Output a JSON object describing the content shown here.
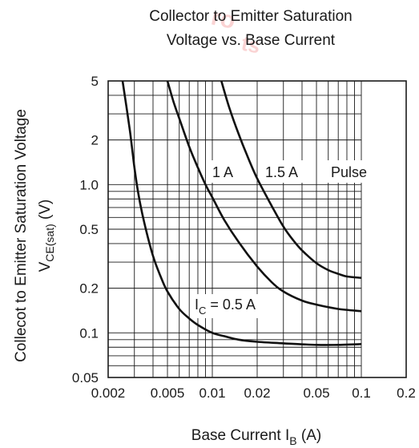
{
  "chart_data": {
    "type": "line",
    "title_line1": "Collector to Emitter Saturation",
    "title_line2": "Voltage vs. Base Current",
    "xlabel_main": "Base Current  I",
    "xlabel_sub": "B",
    "xlabel_unit": " (A)",
    "ylabel_line1": "Collecot to Emitter Saturation Voltage",
    "ylabel_line2_main": "V",
    "ylabel_line2_sub": "CE(sat)",
    "ylabel_line2_unit": " (V)",
    "x_scale": "log",
    "y_scale": "log",
    "xlim": [
      0.002,
      0.2
    ],
    "ylim": [
      0.05,
      5
    ],
    "x_ticks": [
      {
        "v": 0.002,
        "label": "0.002"
      },
      {
        "v": 0.005,
        "label": "0.005"
      },
      {
        "v": 0.01,
        "label": "0.01"
      },
      {
        "v": 0.02,
        "label": "0.02"
      },
      {
        "v": 0.05,
        "label": "0.05"
      },
      {
        "v": 0.1,
        "label": "0.1"
      },
      {
        "v": 0.2,
        "label": "0.2"
      }
    ],
    "y_ticks": [
      {
        "v": 0.05,
        "label": "0.05"
      },
      {
        "v": 0.1,
        "label": "0.1"
      },
      {
        "v": 0.2,
        "label": "0.2"
      },
      {
        "v": 0.5,
        "label": "0.5"
      },
      {
        "v": 1.0,
        "label": "1.0"
      },
      {
        "v": 2,
        "label": "2"
      },
      {
        "v": 5,
        "label": "5"
      }
    ],
    "grid": true,
    "grid_right_limit": 0.1,
    "series": [
      {
        "name": "I_C = 0.5 A",
        "x": [
          0.0025,
          0.0028,
          0.003,
          0.0032,
          0.0035,
          0.004,
          0.0045,
          0.005,
          0.006,
          0.007,
          0.008,
          0.01,
          0.012,
          0.015,
          0.02,
          0.03,
          0.05,
          0.07,
          0.1
        ],
        "y": [
          5,
          2.3,
          1.3,
          0.85,
          0.55,
          0.33,
          0.24,
          0.19,
          0.145,
          0.125,
          0.113,
          0.1,
          0.095,
          0.09,
          0.087,
          0.085,
          0.083,
          0.083,
          0.084
        ]
      },
      {
        "name": "1 A",
        "x": [
          0.005,
          0.0055,
          0.006,
          0.007,
          0.008,
          0.009,
          0.01,
          0.012,
          0.015,
          0.02,
          0.025,
          0.03,
          0.04,
          0.05,
          0.07,
          0.1
        ],
        "y": [
          5,
          3.6,
          2.8,
          1.8,
          1.3,
          1.0,
          0.82,
          0.58,
          0.41,
          0.28,
          0.22,
          0.19,
          0.165,
          0.155,
          0.145,
          0.14
        ]
      },
      {
        "name": "1.5 A",
        "x": [
          0.0115,
          0.013,
          0.015,
          0.017,
          0.02,
          0.025,
          0.03,
          0.035,
          0.04,
          0.05,
          0.06,
          0.07,
          0.08,
          0.1
        ],
        "y": [
          5,
          3.3,
          2.2,
          1.6,
          1.1,
          0.72,
          0.52,
          0.42,
          0.36,
          0.295,
          0.265,
          0.25,
          0.24,
          0.235
        ]
      }
    ],
    "annotations": {
      "label_1A": "1 A",
      "label_1_5A": "1.5 A",
      "label_pulse": "Pulse",
      "label_ic_main": "I",
      "label_ic_sub": "C",
      "label_ic_rest": " = 0.5 A"
    }
  }
}
